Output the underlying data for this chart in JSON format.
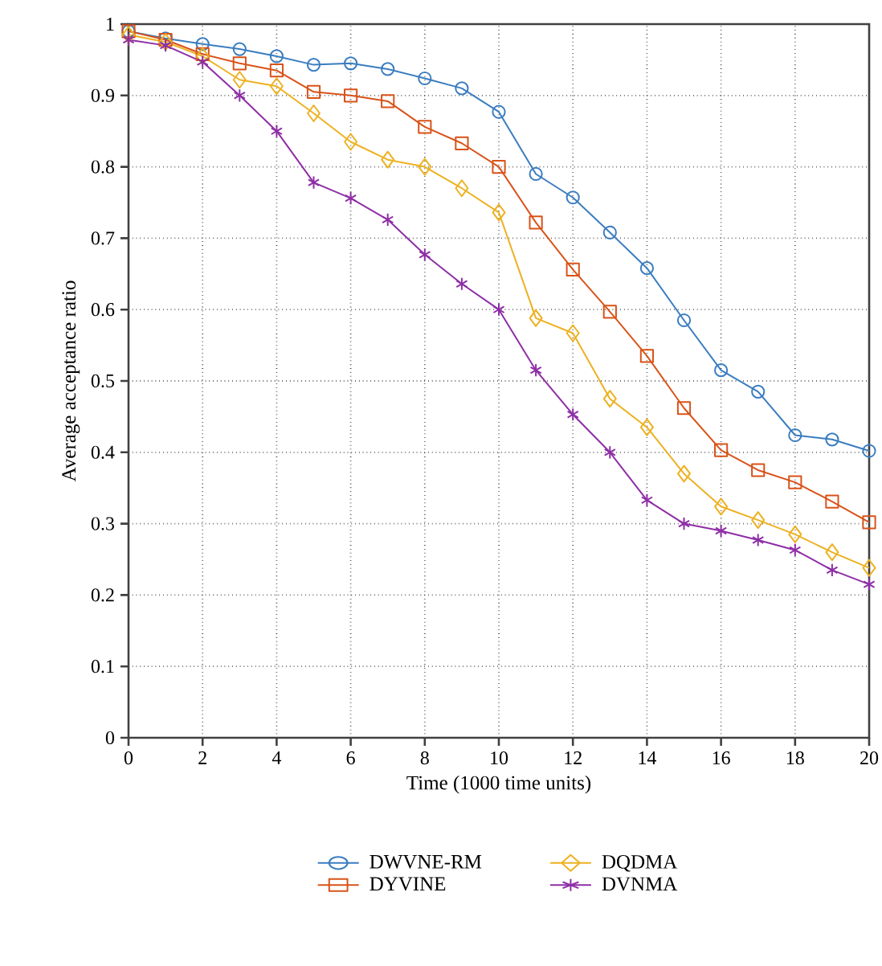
{
  "chart_data": {
    "type": "line",
    "xlabel": "Time (1000 time units)",
    "ylabel": "Average acceptance ratio",
    "x": [
      0,
      1,
      2,
      3,
      4,
      5,
      6,
      7,
      8,
      9,
      10,
      11,
      12,
      13,
      14,
      15,
      16,
      17,
      18,
      19,
      20
    ],
    "series": [
      {
        "name": "DWVNE-RM",
        "color": "#3a7dc0",
        "marker": "circle",
        "values": [
          0.99,
          0.98,
          0.972,
          0.965,
          0.955,
          0.943,
          0.945,
          0.937,
          0.924,
          0.91,
          0.877,
          0.79,
          0.757,
          0.708,
          0.658,
          0.585,
          0.515,
          0.485,
          0.424,
          0.418,
          0.402
        ]
      },
      {
        "name": "DYVINE",
        "color": "#d95319",
        "marker": "square",
        "values": [
          0.99,
          0.978,
          0.958,
          0.945,
          0.935,
          0.905,
          0.9,
          0.892,
          0.856,
          0.833,
          0.8,
          0.722,
          0.656,
          0.597,
          0.535,
          0.462,
          0.403,
          0.375,
          0.358,
          0.331,
          0.302
        ]
      },
      {
        "name": "DQDMA",
        "color": "#edb120",
        "marker": "diamond",
        "values": [
          0.985,
          0.975,
          0.955,
          0.922,
          0.913,
          0.875,
          0.835,
          0.81,
          0.8,
          0.77,
          0.736,
          0.588,
          0.567,
          0.475,
          0.435,
          0.37,
          0.324,
          0.305,
          0.285,
          0.26,
          0.238
        ]
      },
      {
        "name": "DVNMA",
        "color": "#8e2ea6",
        "marker": "cross",
        "values": [
          0.978,
          0.97,
          0.947,
          0.9,
          0.85,
          0.778,
          0.756,
          0.726,
          0.677,
          0.636,
          0.6,
          0.515,
          0.453,
          0.4,
          0.333,
          0.3,
          0.29,
          0.277,
          0.263,
          0.235,
          0.215
        ]
      }
    ],
    "xlim": [
      0,
      20
    ],
    "ylim": [
      0,
      1
    ],
    "xticks": [
      0,
      2,
      4,
      6,
      8,
      10,
      12,
      14,
      16,
      18,
      20
    ],
    "yticks": [
      0,
      0.1,
      0.2,
      0.3,
      0.4,
      0.5,
      0.6,
      0.7,
      0.8,
      0.9,
      1
    ],
    "grid": true,
    "legend": "bottom",
    "line_style": "solid"
  }
}
